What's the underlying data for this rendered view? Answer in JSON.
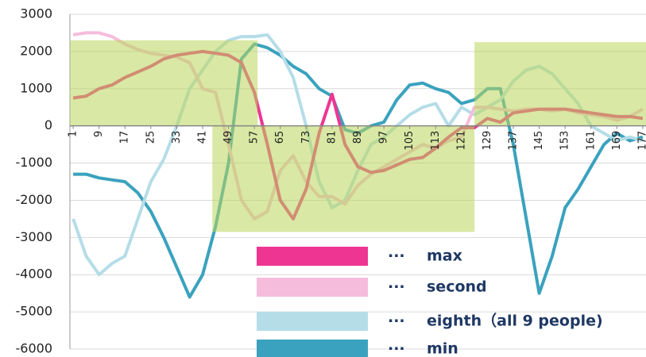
{
  "chart_data": {
    "type": "line",
    "x": [
      1,
      5,
      9,
      13,
      17,
      21,
      25,
      29,
      33,
      37,
      41,
      45,
      49,
      53,
      57,
      61,
      65,
      69,
      73,
      77,
      81,
      85,
      89,
      93,
      97,
      101,
      105,
      109,
      113,
      117,
      121,
      125,
      129,
      133,
      137,
      141,
      145,
      149,
      153,
      157,
      161,
      165,
      169,
      173,
      177
    ],
    "series": [
      {
        "name": "max",
        "color": "#ee3592",
        "values": [
          750,
          800,
          1000,
          1100,
          1300,
          1450,
          1600,
          1800,
          1900,
          1950,
          2000,
          1950,
          1900,
          1700,
          900,
          -500,
          -2000,
          -2500,
          -1700,
          -200,
          850,
          -500,
          -1100,
          -1250,
          -1200,
          -1050,
          -900,
          -850,
          -600,
          -300,
          -50,
          -50,
          200,
          100,
          350,
          400,
          450,
          450,
          450,
          400,
          350,
          300,
          250,
          250,
          200
        ]
      },
      {
        "name": "second",
        "color": "#f6bcdc",
        "values": [
          2450,
          2500,
          2500,
          2400,
          2200,
          2050,
          1950,
          1900,
          1850,
          1700,
          1000,
          900,
          -500,
          -2000,
          -2500,
          -2300,
          -1200,
          -800,
          -1500,
          -1900,
          -1900,
          -2100,
          -1600,
          -1300,
          -1100,
          -900,
          -700,
          -500,
          -600,
          -400,
          -300,
          500,
          500,
          450,
          400,
          450,
          450,
          400,
          450,
          350,
          300,
          250,
          150,
          250,
          450
        ]
      },
      {
        "name": "eighth（all 9 people)",
        "color": "#b5dde8",
        "values": [
          -2500,
          -3500,
          -4000,
          -3700,
          -3500,
          -2500,
          -1500,
          -900,
          0,
          1000,
          1500,
          2000,
          2300,
          2400,
          2400,
          2450,
          2000,
          1300,
          0,
          -1500,
          -2200,
          -2000,
          -1200,
          -500,
          -300,
          0,
          300,
          500,
          600,
          0,
          500,
          300,
          500,
          700,
          1200,
          1500,
          1600,
          1400,
          1000,
          600,
          0,
          -200,
          -400,
          -300,
          -400
        ]
      },
      {
        "name": "min",
        "color": "#3aa2be",
        "values": [
          -1300,
          -1300,
          -1400,
          -1450,
          -1500,
          -1800,
          -2300,
          -3000,
          -3800,
          -4600,
          -4000,
          -2700,
          -1000,
          1800,
          2200,
          2100,
          1900,
          1600,
          1400,
          1000,
          800,
          -100,
          -200,
          0,
          100,
          700,
          1100,
          1150,
          1000,
          900,
          600,
          700,
          1000,
          1000,
          -500,
          -2500,
          -4500,
          -3500,
          -2200,
          -1700,
          -1100,
          -500,
          -200,
          -400,
          -300
        ]
      }
    ],
    "highlight_regions": [
      {
        "x": [
          0,
          58
        ],
        "y": [
          0,
          2300
        ]
      },
      {
        "x": [
          44,
          125
        ],
        "y": [
          -2850,
          0
        ]
      },
      {
        "x": [
          125,
          178
        ],
        "y": [
          0,
          2250
        ]
      }
    ],
    "highlight_color": "#b9d65a",
    "legend_separator": "···",
    "xlim": [
      0,
      178
    ],
    "xticks": [
      1,
      9,
      17,
      25,
      33,
      41,
      49,
      57,
      65,
      73,
      81,
      89,
      97,
      105,
      113,
      121,
      129,
      137,
      145,
      153,
      161,
      169,
      177
    ],
    "ylim": [
      -6000,
      3000
    ],
    "yticks": [
      -6000,
      -5000,
      -4000,
      -3000,
      -2000,
      -1000,
      0,
      1000,
      2000,
      3000
    ],
    "grid": true
  }
}
